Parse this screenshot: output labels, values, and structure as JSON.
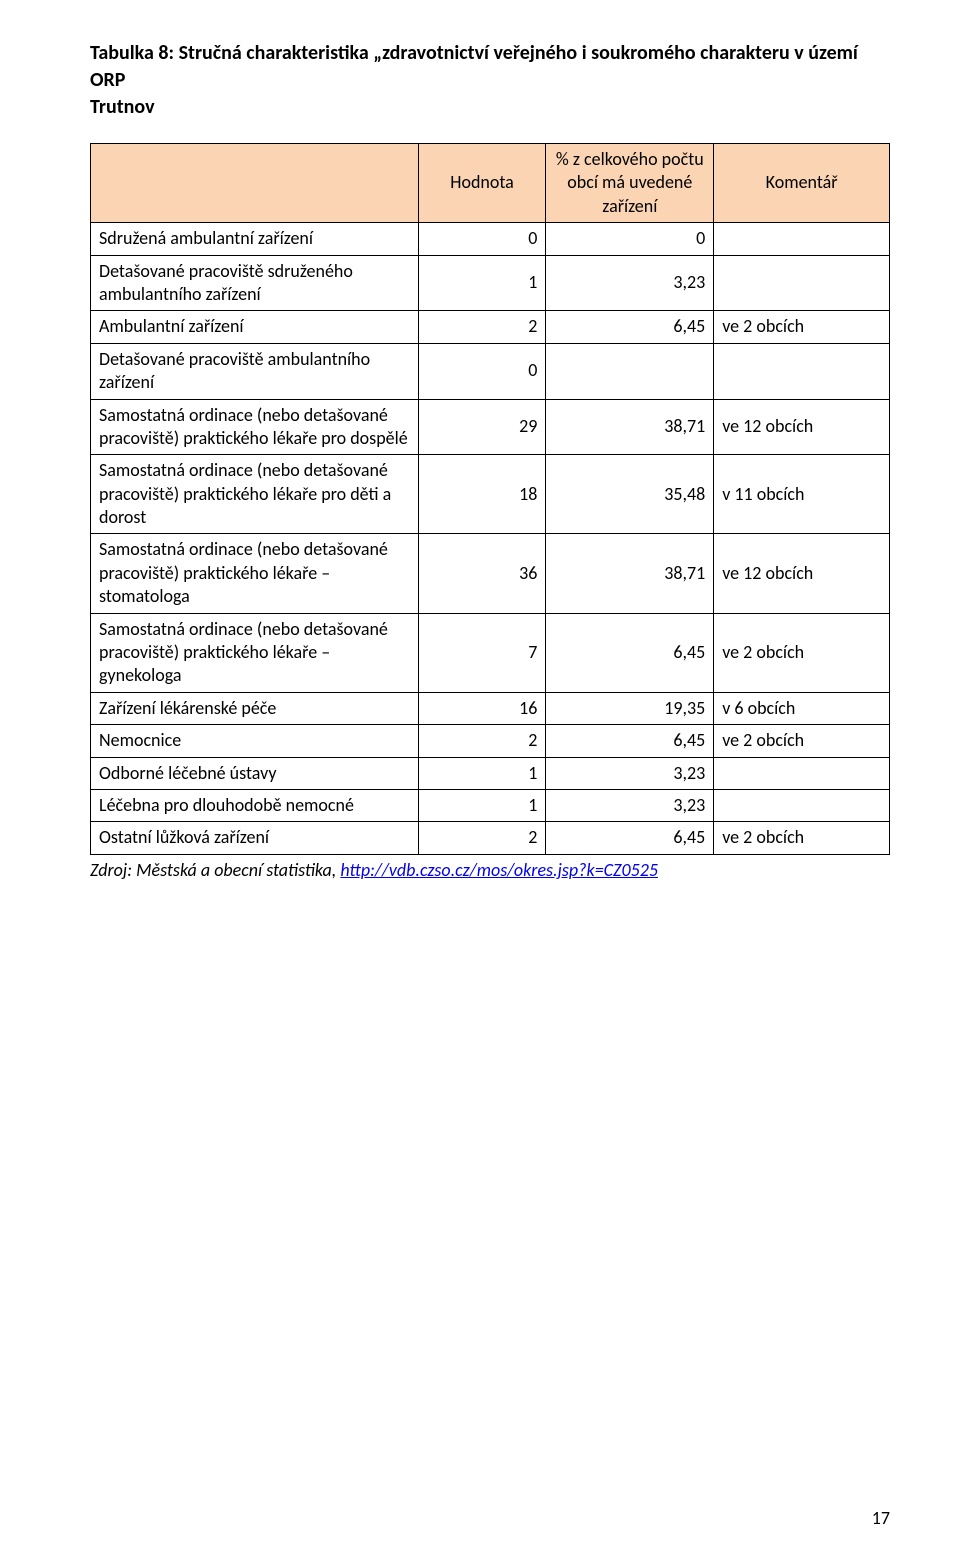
{
  "title_line1": "Tabulka 8: Stručná charakteristika „zdravotnictví veřejného i soukromého charakteru v území ORP",
  "title_line2": "Trutnov",
  "table": {
    "header_bg": "#fbd4b4",
    "border_color": "#000000",
    "columns": [
      "",
      "Hodnota",
      "% z celkového počtu obcí má uvedené zařízení",
      "Komentář"
    ],
    "rows": [
      {
        "label": "Sdružená ambulantní zařízení",
        "value": "0",
        "pct": "0",
        "note": ""
      },
      {
        "label": "Detašované pracoviště sdruženého ambulantního zařízení",
        "value": "1",
        "pct": "3,23",
        "note": ""
      },
      {
        "label": "Ambulantní zařízení",
        "value": "2",
        "pct": "6,45",
        "note": "ve 2 obcích"
      },
      {
        "label": "Detašované pracoviště ambulantního zařízení",
        "value": "0",
        "pct": "",
        "note": ""
      },
      {
        "label": "Samostatná ordinace (nebo detašované pracoviště) praktického lékaře pro dospělé",
        "value": "29",
        "pct": "38,71",
        "note": "ve 12 obcích"
      },
      {
        "label": "Samostatná ordinace (nebo detašované pracoviště) praktického lékaře pro děti a dorost",
        "value": "18",
        "pct": "35,48",
        "note": "v 11 obcích"
      },
      {
        "label": "Samostatná ordinace (nebo detašované pracoviště) praktického lékaře – stomatologa",
        "value": "36",
        "pct": "38,71",
        "note": "ve 12 obcích"
      },
      {
        "label": "Samostatná ordinace (nebo detašované pracoviště) praktického lékaře – gynekologa",
        "value": "7",
        "pct": "6,45",
        "note": "ve 2 obcích"
      },
      {
        "label": "Zařízení lékárenské péče",
        "value": "16",
        "pct": "19,35",
        "note": "v 6 obcích"
      },
      {
        "label": "Nemocnice",
        "value": "2",
        "pct": "6,45",
        "note": "ve 2 obcích"
      },
      {
        "label": "Odborné léčebné ústavy",
        "value": "1",
        "pct": "3,23",
        "note": ""
      },
      {
        "label": "Léčebna pro dlouhodobě nemocné",
        "value": "1",
        "pct": "3,23",
        "note": ""
      },
      {
        "label": "Ostatní lůžková zařízení",
        "value": "2",
        "pct": "6,45",
        "note": "ve 2 obcích"
      }
    ]
  },
  "source_prefix": "Zdroj: Městská a obecní statistika, ",
  "source_link_text": "http://vdb.czso.cz/mos/okres.jsp?k=CZ0525",
  "page_number": "17"
}
